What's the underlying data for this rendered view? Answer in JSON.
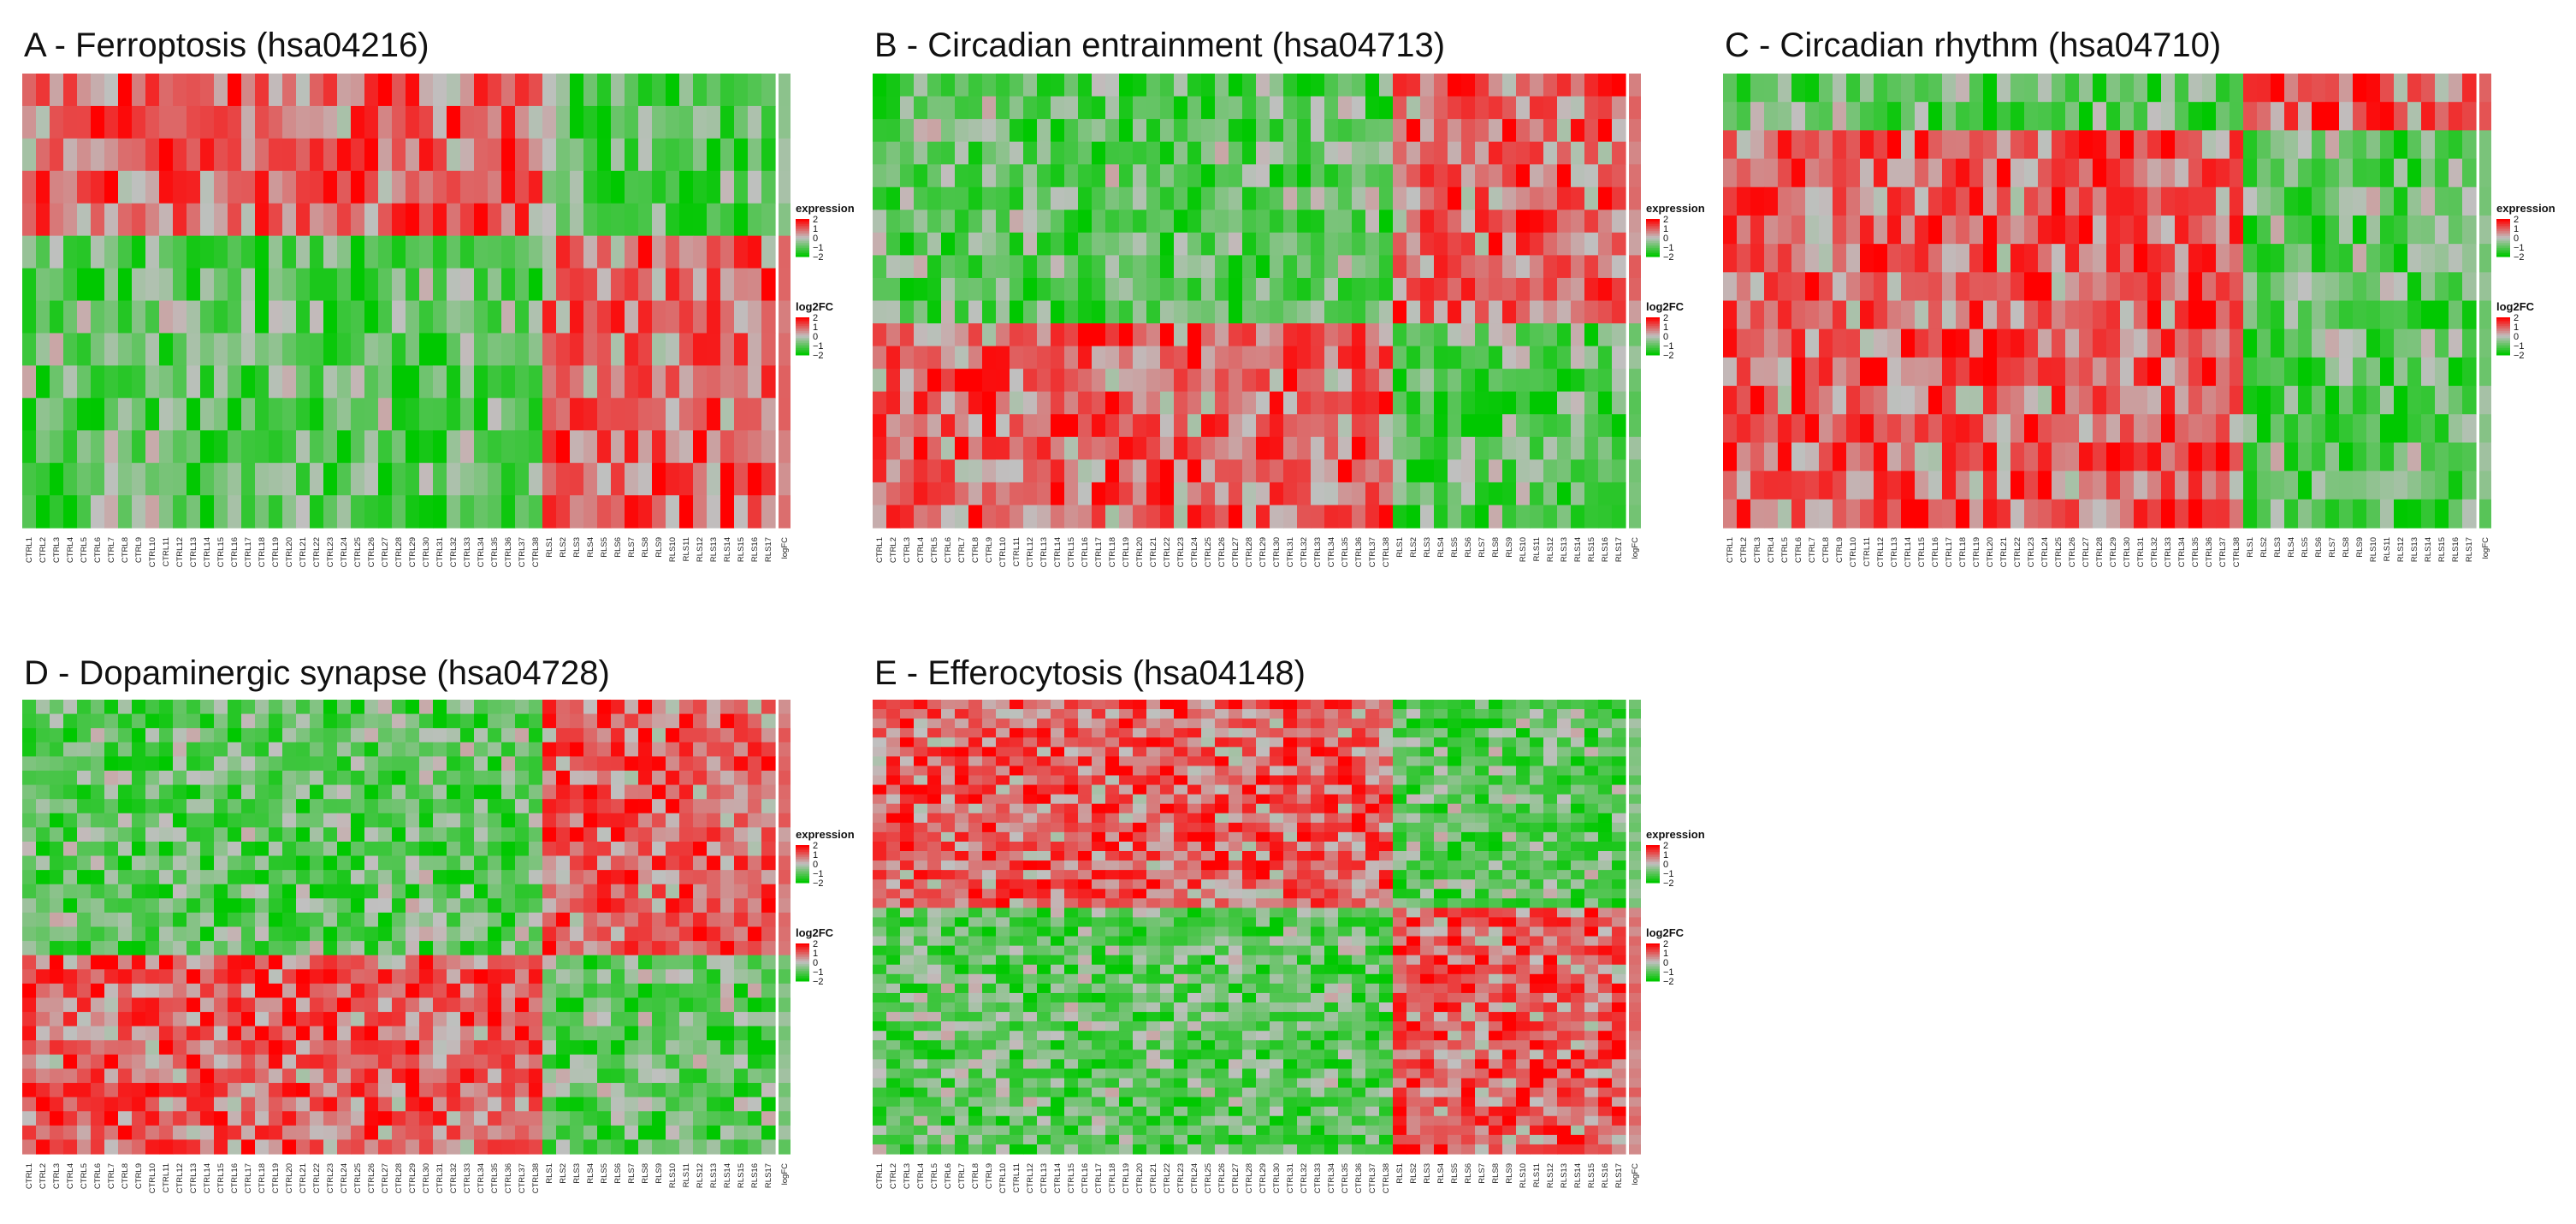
{
  "figure": {
    "description_free": true,
    "colors": {
      "low": "#00c800",
      "mid": "#c0c0c0",
      "high": "#ff0000",
      "bg": "#ffffff"
    }
  },
  "chart_data": [
    {
      "id": "A",
      "type": "heatmap",
      "title": "A - Ferroptosis (hsa04216)",
      "ctrl_count": 38,
      "rls_count": 17,
      "gene_rows": 14,
      "group_split_row": 5,
      "pattern": "rows 1-5 up in CTRL / down in RLS; rows 6-14 down in CTRL / up in RLS",
      "sample_labels": [
        "CTRL1",
        "CTRL2",
        "CTRL3",
        "CTRL4",
        "CTRL5",
        "CTRL6",
        "CTRL7",
        "CTRL8",
        "CTRL9",
        "CTRL10",
        "CTRL11",
        "CTRL12",
        "CTRL13",
        "CTRL14",
        "CTRL15",
        "CTRL16",
        "CTRL17",
        "CTRL18",
        "CTRL19",
        "CTRL20",
        "CTRL21",
        "CTRL22",
        "CTRL23",
        "CTRL24",
        "CTRL25",
        "CTRL26",
        "CTRL27",
        "CTRL28",
        "CTRL29",
        "CTRL30",
        "CTRL31",
        "CTRL32",
        "CTRL33",
        "CTRL34",
        "CTRL35",
        "CTRL36",
        "CTRL37",
        "CTRL38",
        "RLS1",
        "RLS2",
        "RLS3",
        "RLS4",
        "RLS5",
        "RLS6",
        "RLS7",
        "RLS8",
        "RLS9",
        "RLS10",
        "RLS11",
        "RLS12",
        "RLS13",
        "RLS14",
        "RLS15",
        "RLS16",
        "RLS17"
      ],
      "logfc_label": "logFC",
      "legend": {
        "expression_title": "expression",
        "expression_ticks": [
          "2",
          "1",
          "0",
          "−1",
          "−2"
        ],
        "log2fc_title": "log2FC",
        "log2fc_ticks": [
          "2",
          "1",
          "0",
          "−1",
          "−2"
        ],
        "range": [
          -2,
          2
        ]
      }
    },
    {
      "id": "B",
      "type": "heatmap",
      "title": "B - Circadian entrainment (hsa04713)",
      "ctrl_count": 38,
      "rls_count": 17,
      "gene_rows": 20,
      "group_split_row": 11,
      "pattern": "rows 1-11 up in RLS; rows 12-20 up in CTRL",
      "sample_labels": [
        "CTRL1",
        "CTRL2",
        "CTRL3",
        "CTRL4",
        "CTRL5",
        "CTRL6",
        "CTRL7",
        "CTRL8",
        "CTRL9",
        "CTRL10",
        "CTRL11",
        "CTRL12",
        "CTRL13",
        "CTRL14",
        "CTRL15",
        "CTRL16",
        "CTRL17",
        "CTRL18",
        "CTRL19",
        "CTRL20",
        "CTRL21",
        "CTRL22",
        "CTRL23",
        "CTRL24",
        "CTRL25",
        "CTRL26",
        "CTRL27",
        "CTRL28",
        "CTRL29",
        "CTRL30",
        "CTRL31",
        "CTRL32",
        "CTRL33",
        "CTRL34",
        "CTRL35",
        "CTRL36",
        "CTRL37",
        "CTRL38",
        "RLS1",
        "RLS2",
        "RLS3",
        "RLS4",
        "RLS5",
        "RLS6",
        "RLS7",
        "RLS8",
        "RLS9",
        "RLS10",
        "RLS11",
        "RLS12",
        "RLS13",
        "RLS14",
        "RLS15",
        "RLS16",
        "RLS17"
      ],
      "logfc_label": "logFC",
      "legend": {
        "expression_title": "expression",
        "expression_ticks": [
          "2",
          "1",
          "0",
          "−1",
          "−2"
        ],
        "log2fc_title": "log2FC",
        "log2fc_ticks": [
          "2",
          "1",
          "0",
          "−1",
          "−2"
        ],
        "range": [
          -2,
          2
        ]
      }
    },
    {
      "id": "C",
      "type": "heatmap",
      "title": "C - Circadian rhythm (hsa04710)",
      "ctrl_count": 38,
      "rls_count": 17,
      "gene_rows": 16,
      "group_split_row": 2,
      "pattern": "rows 1-2 up in RLS; rows 3-16 up in CTRL",
      "sample_labels": [
        "CTRL1",
        "CTRL2",
        "CTRL3",
        "CTRL4",
        "CTRL5",
        "CTRL6",
        "CTRL7",
        "CTRL8",
        "CTRL9",
        "CTRL10",
        "CTRL11",
        "CTRL12",
        "CTRL13",
        "CTRL14",
        "CTRL15",
        "CTRL16",
        "CTRL17",
        "CTRL18",
        "CTRL19",
        "CTRL20",
        "CTRL21",
        "CTRL22",
        "CTRL23",
        "CTRL24",
        "CTRL25",
        "CTRL26",
        "CTRL27",
        "CTRL28",
        "CTRL29",
        "CTRL30",
        "CTRL31",
        "CTRL32",
        "CTRL33",
        "CTRL34",
        "CTRL35",
        "CTRL36",
        "CTRL37",
        "CTRL38",
        "RLS1",
        "RLS2",
        "RLS3",
        "RLS4",
        "RLS5",
        "RLS6",
        "RLS7",
        "RLS8",
        "RLS9",
        "RLS10",
        "RLS11",
        "RLS12",
        "RLS13",
        "RLS14",
        "RLS15",
        "RLS16",
        "RLS17"
      ],
      "logfc_label": "logFC",
      "legend": {
        "expression_title": "expression",
        "expression_ticks": [
          "2",
          "1",
          "0",
          "−1",
          "−2"
        ],
        "log2fc_title": "log2FC",
        "log2fc_ticks": [
          "2",
          "1",
          "0",
          "−1",
          "−2"
        ],
        "range": [
          -2,
          2
        ]
      }
    },
    {
      "id": "D",
      "type": "heatmap",
      "title": "D - Dopaminergic synapse (hsa04728)",
      "ctrl_count": 38,
      "rls_count": 17,
      "gene_rows": 32,
      "group_split_row": 18,
      "pattern": "rows 1-18 up in RLS; rows 19-32 up in CTRL",
      "sample_labels": [
        "CTRL1",
        "CTRL2",
        "CTRL3",
        "CTRL4",
        "CTRL5",
        "CTRL6",
        "CTRL7",
        "CTRL8",
        "CTRL9",
        "CTRL10",
        "CTRL11",
        "CTRL12",
        "CTRL13",
        "CTRL14",
        "CTRL15",
        "CTRL16",
        "CTRL17",
        "CTRL18",
        "CTRL19",
        "CTRL20",
        "CTRL21",
        "CTRL22",
        "CTRL23",
        "CTRL24",
        "CTRL25",
        "CTRL26",
        "CTRL27",
        "CTRL28",
        "CTRL29",
        "CTRL30",
        "CTRL31",
        "CTRL32",
        "CTRL33",
        "CTRL34",
        "CTRL35",
        "CTRL36",
        "CTRL37",
        "CTRL38",
        "RLS1",
        "RLS2",
        "RLS3",
        "RLS4",
        "RLS5",
        "RLS6",
        "RLS7",
        "RLS8",
        "RLS9",
        "RLS10",
        "RLS11",
        "RLS12",
        "RLS13",
        "RLS14",
        "RLS15",
        "RLS16",
        "RLS17"
      ],
      "logfc_label": "logFC",
      "legend": {
        "expression_title": "expression",
        "expression_ticks": [
          "2",
          "1",
          "0",
          "−1",
          "−2"
        ],
        "log2fc_title": "log2FC",
        "log2fc_ticks": [
          "2",
          "1",
          "0",
          "−1",
          "−2"
        ],
        "range": [
          -2,
          2
        ]
      }
    },
    {
      "id": "E",
      "type": "heatmap",
      "title": "E - Efferocytosis (hsa04148)",
      "ctrl_count": 38,
      "rls_count": 17,
      "gene_rows": 48,
      "group_split_row": 22,
      "pattern": "rows 1-22 up in CTRL; rows 23-48 up in RLS",
      "sample_labels": [
        "CTRL1",
        "CTRL2",
        "CTRL3",
        "CTRL4",
        "CTRL5",
        "CTRL6",
        "CTRL7",
        "CTRL8",
        "CTRL9",
        "CTRL10",
        "CTRL11",
        "CTRL12",
        "CTRL13",
        "CTRL14",
        "CTRL15",
        "CTRL16",
        "CTRL17",
        "CTRL18",
        "CTRL19",
        "CTRL20",
        "CTRL21",
        "CTRL22",
        "CTRL23",
        "CTRL24",
        "CTRL25",
        "CTRL26",
        "CTRL27",
        "CTRL28",
        "CTRL29",
        "CTRL30",
        "CTRL31",
        "CTRL32",
        "CTRL33",
        "CTRL34",
        "CTRL35",
        "CTRL36",
        "CTRL37",
        "CTRL38",
        "RLS1",
        "RLS2",
        "RLS3",
        "RLS4",
        "RLS5",
        "RLS6",
        "RLS7",
        "RLS8",
        "RLS9",
        "RLS10",
        "RLS11",
        "RLS12",
        "RLS13",
        "RLS14",
        "RLS15",
        "RLS16",
        "RLS17"
      ],
      "logfc_label": "logFC",
      "legend": {
        "expression_title": "expression",
        "expression_ticks": [
          "2",
          "1",
          "0",
          "−1",
          "−2"
        ],
        "log2fc_title": "log2FC",
        "log2fc_ticks": [
          "2",
          "1",
          "0",
          "−1",
          "−2"
        ],
        "range": [
          -2,
          2
        ]
      }
    }
  ]
}
